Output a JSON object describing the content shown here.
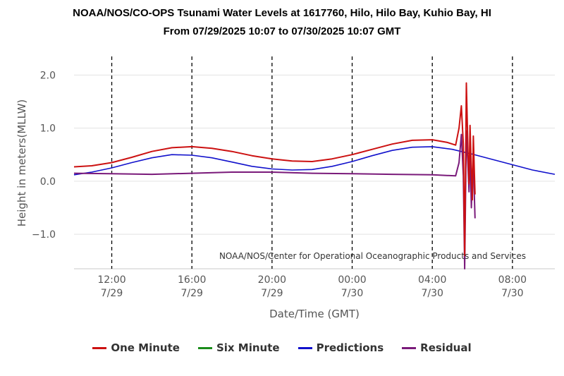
{
  "chart_data": {
    "type": "line",
    "title": "NOAA/NOS/CO-OPS Tsunami Water Levels at 1617760, Hilo, Hilo Bay, Kuhio Bay, HI",
    "subtitle": "From 07/29/2025 10:07 to 07/30/2025 10:07 GMT",
    "xlabel": "Date/Time (GMT)",
    "ylabel": "Height in meters(MLLW)",
    "credit": "NOAA/NOS/Center for Operational Oceanographic Products and Services",
    "x_range": [
      "2025-07-29T10:07",
      "2025-07-30T10:07"
    ],
    "ylim": [
      -1.65,
      2.35
    ],
    "yticks": [
      {
        "value": 2.0,
        "label": "2.0"
      },
      {
        "value": 1.0,
        "label": "1.0"
      },
      {
        "value": 0.0,
        "label": "0.0"
      },
      {
        "value": -1.0,
        "label": "−1.0"
      }
    ],
    "xticks": [
      {
        "time": "2025-07-29T12:00",
        "line1": "12:00",
        "line2": "7/29"
      },
      {
        "time": "2025-07-29T16:00",
        "line1": "16:00",
        "line2": "7/29"
      },
      {
        "time": "2025-07-29T20:00",
        "line1": "20:00",
        "line2": "7/29"
      },
      {
        "time": "2025-07-30T00:00",
        "line1": "00:00",
        "line2": "7/30"
      },
      {
        "time": "2025-07-30T04:00",
        "line1": "04:00",
        "line2": "7/30"
      },
      {
        "time": "2025-07-30T08:00",
        "line1": "08:00",
        "line2": "7/30"
      }
    ],
    "grid": "horizontal",
    "legend_position": "bottom",
    "series": [
      {
        "name": "One Minute",
        "color": "#cc1111",
        "points": [
          [
            "2025-07-29T10:07",
            0.27
          ],
          [
            "2025-07-29T11:00",
            0.29
          ],
          [
            "2025-07-29T12:00",
            0.35
          ],
          [
            "2025-07-29T13:00",
            0.45
          ],
          [
            "2025-07-29T14:00",
            0.56
          ],
          [
            "2025-07-29T15:00",
            0.63
          ],
          [
            "2025-07-29T16:00",
            0.65
          ],
          [
            "2025-07-29T17:00",
            0.62
          ],
          [
            "2025-07-29T18:00",
            0.56
          ],
          [
            "2025-07-29T19:00",
            0.48
          ],
          [
            "2025-07-29T20:00",
            0.42
          ],
          [
            "2025-07-29T21:00",
            0.38
          ],
          [
            "2025-07-29T22:00",
            0.37
          ],
          [
            "2025-07-29T23:00",
            0.42
          ],
          [
            "2025-07-30T00:00",
            0.5
          ],
          [
            "2025-07-30T01:00",
            0.6
          ],
          [
            "2025-07-30T02:00",
            0.7
          ],
          [
            "2025-07-30T03:00",
            0.77
          ],
          [
            "2025-07-30T04:00",
            0.78
          ],
          [
            "2025-07-30T04:45",
            0.73
          ],
          [
            "2025-07-30T05:10",
            0.68
          ],
          [
            "2025-07-30T05:20",
            1.0
          ],
          [
            "2025-07-30T05:27",
            1.42
          ],
          [
            "2025-07-30T05:33",
            0.7
          ],
          [
            "2025-07-30T05:37",
            -1.4
          ],
          [
            "2025-07-30T05:42",
            1.85
          ],
          [
            "2025-07-30T05:47",
            0.5
          ],
          [
            "2025-07-30T05:50",
            -0.05
          ],
          [
            "2025-07-30T05:53",
            1.05
          ],
          [
            "2025-07-30T05:57",
            0.2
          ],
          [
            "2025-07-30T06:00",
            -0.35
          ],
          [
            "2025-07-30T06:03",
            0.85
          ],
          [
            "2025-07-30T06:06",
            0.15
          ],
          [
            "2025-07-30T06:08",
            -0.25
          ]
        ]
      },
      {
        "name": "Six Minute",
        "color": "#1a8c1a",
        "points": []
      },
      {
        "name": "Predictions",
        "color": "#1111cc",
        "points": [
          [
            "2025-07-29T10:07",
            0.12
          ],
          [
            "2025-07-29T11:00",
            0.17
          ],
          [
            "2025-07-29T12:00",
            0.25
          ],
          [
            "2025-07-29T13:00",
            0.35
          ],
          [
            "2025-07-29T14:00",
            0.44
          ],
          [
            "2025-07-29T15:00",
            0.5
          ],
          [
            "2025-07-29T16:00",
            0.49
          ],
          [
            "2025-07-29T17:00",
            0.44
          ],
          [
            "2025-07-29T18:00",
            0.36
          ],
          [
            "2025-07-29T19:00",
            0.28
          ],
          [
            "2025-07-29T20:00",
            0.23
          ],
          [
            "2025-07-29T21:00",
            0.21
          ],
          [
            "2025-07-29T22:00",
            0.22
          ],
          [
            "2025-07-29T23:00",
            0.28
          ],
          [
            "2025-07-30T00:00",
            0.37
          ],
          [
            "2025-07-30T01:00",
            0.48
          ],
          [
            "2025-07-30T02:00",
            0.58
          ],
          [
            "2025-07-30T03:00",
            0.64
          ],
          [
            "2025-07-30T04:00",
            0.65
          ],
          [
            "2025-07-30T05:00",
            0.6
          ],
          [
            "2025-07-30T06:00",
            0.51
          ],
          [
            "2025-07-30T07:00",
            0.41
          ],
          [
            "2025-07-30T08:00",
            0.31
          ],
          [
            "2025-07-30T09:00",
            0.21
          ],
          [
            "2025-07-30T10:07",
            0.13
          ]
        ]
      },
      {
        "name": "Residual",
        "color": "#7a1a7a",
        "points": [
          [
            "2025-07-29T10:07",
            0.15
          ],
          [
            "2025-07-29T12:00",
            0.14
          ],
          [
            "2025-07-29T14:00",
            0.13
          ],
          [
            "2025-07-29T16:00",
            0.15
          ],
          [
            "2025-07-29T18:00",
            0.17
          ],
          [
            "2025-07-29T20:00",
            0.17
          ],
          [
            "2025-07-29T22:00",
            0.15
          ],
          [
            "2025-07-30T00:00",
            0.14
          ],
          [
            "2025-07-30T02:00",
            0.13
          ],
          [
            "2025-07-30T04:00",
            0.12
          ],
          [
            "2025-07-30T05:10",
            0.1
          ],
          [
            "2025-07-30T05:20",
            0.35
          ],
          [
            "2025-07-30T05:27",
            0.88
          ],
          [
            "2025-07-30T05:33",
            0.1
          ],
          [
            "2025-07-30T05:37",
            -1.65
          ],
          [
            "2025-07-30T05:42",
            0.95
          ],
          [
            "2025-07-30T05:47",
            0.25
          ],
          [
            "2025-07-30T05:50",
            -0.2
          ],
          [
            "2025-07-30T05:53",
            0.6
          ],
          [
            "2025-07-30T05:57",
            -0.5
          ],
          [
            "2025-07-30T06:00",
            0.05
          ],
          [
            "2025-07-30T06:03",
            0.35
          ],
          [
            "2025-07-30T06:06",
            -0.3
          ],
          [
            "2025-07-30T06:08",
            -0.7
          ]
        ]
      }
    ]
  }
}
